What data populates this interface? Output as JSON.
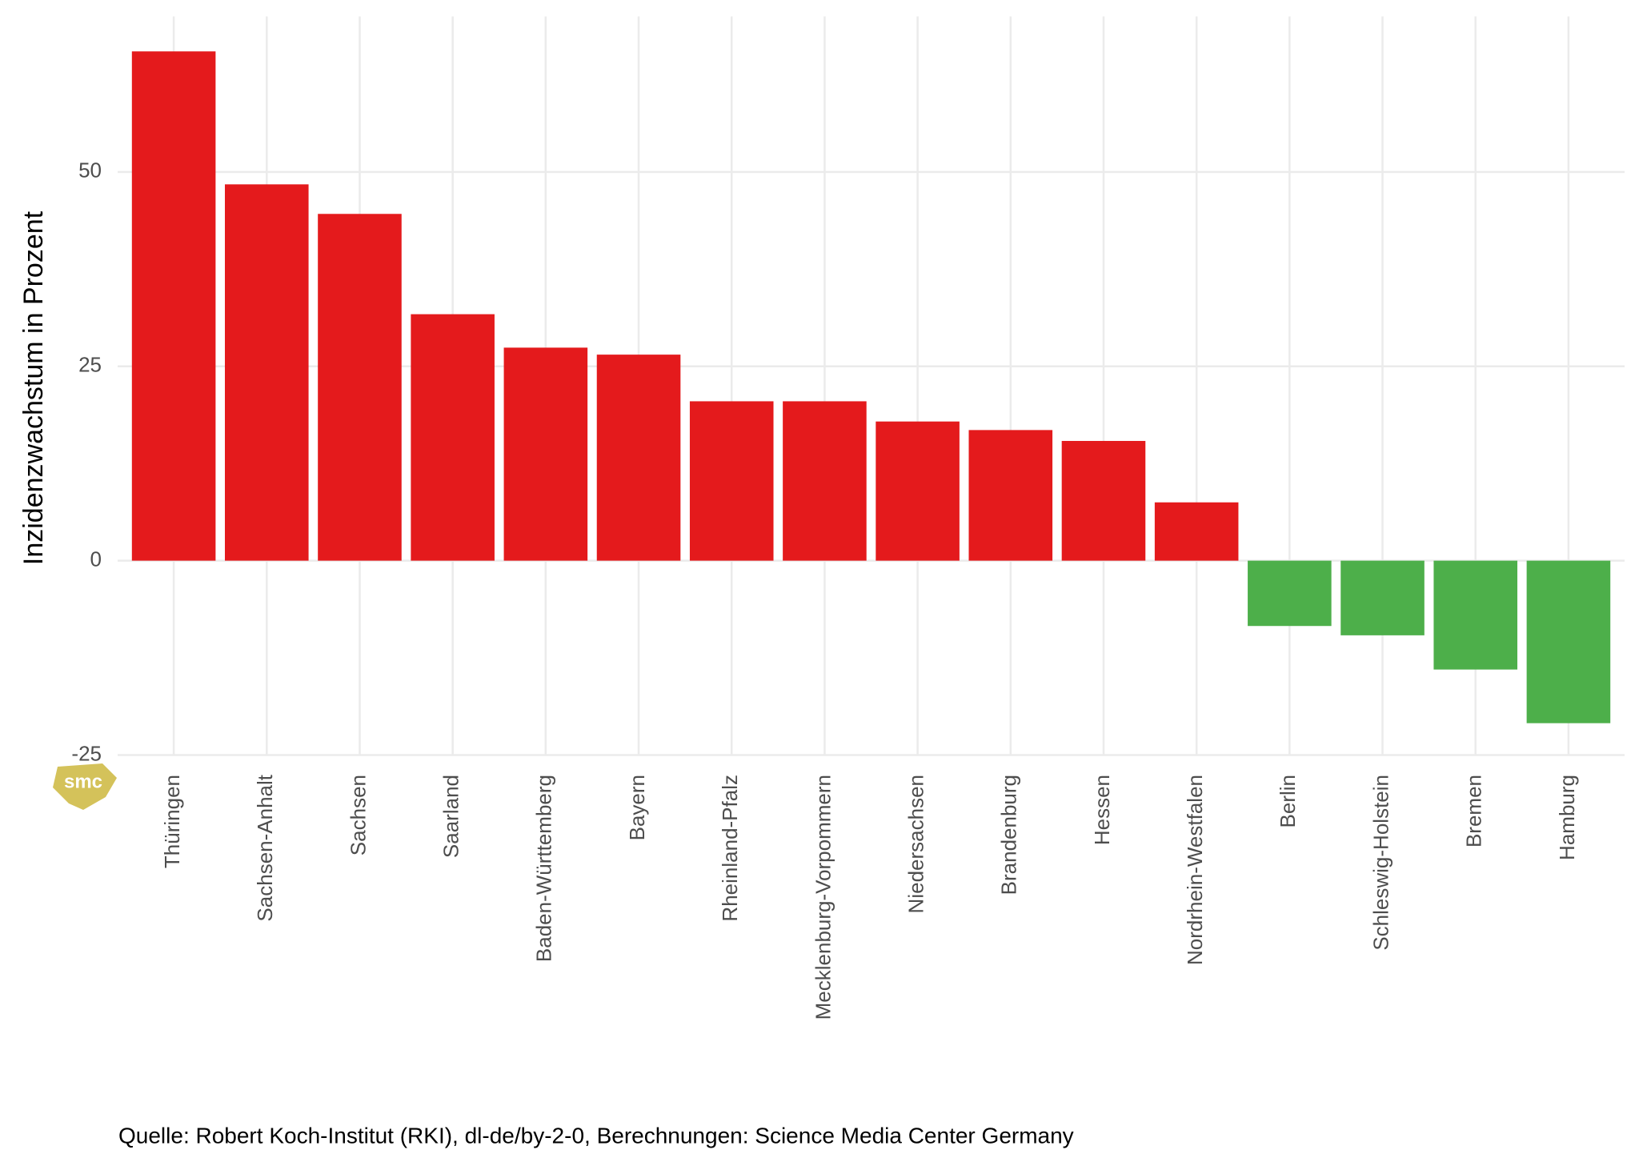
{
  "chart_data": {
    "type": "bar",
    "y_label": "Inzidenzwachstum in Prozent",
    "categories": [
      "Thüringen",
      "Sachsen-Anhalt",
      "Sachsen",
      "Saarland",
      "Baden-Württemberg",
      "Bayern",
      "Rheinland-Pfalz",
      "Mecklenburg-Vorpommern",
      "Niedersachsen",
      "Brandenburg",
      "Hessen",
      "Nordrhein-Westfalen",
      "Berlin",
      "Schleswig-Holstein",
      "Bremen",
      "Hamburg"
    ],
    "values": [
      65.5,
      48.4,
      44.6,
      31.7,
      27.4,
      26.5,
      20.5,
      20.5,
      17.9,
      16.8,
      15.4,
      7.5,
      -8.4,
      -9.6,
      -14.0,
      -20.9
    ],
    "positive_color": "#e41a1c",
    "negative_color": "#4daf4a",
    "ylim": [
      -25,
      70
    ],
    "yticks": [
      -25,
      0,
      25,
      50
    ],
    "grid": true,
    "caption": "Quelle: Robert Koch-Institut (RKI), dl-de/by-2-0, Berechnungen: Science Media Center Germany",
    "logo": "smc"
  }
}
